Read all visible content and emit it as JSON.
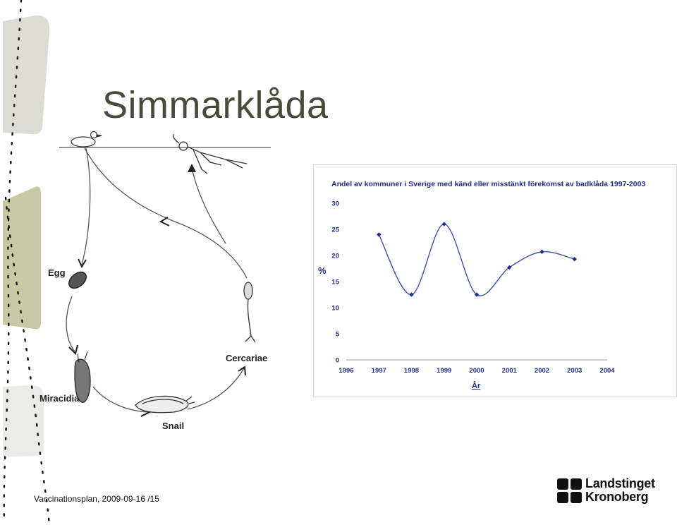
{
  "slide": {
    "title": "Simmarklåda",
    "footer": "Vaccinationsplan, 2009-09-16 /15"
  },
  "diagram": {
    "labels": {
      "egg": "Egg",
      "miracidia": "Miracidia",
      "snail": "Snail",
      "cercariae": "Cercariae"
    }
  },
  "logo": {
    "line1": "Landstinget",
    "line2": "Kronoberg"
  },
  "colors": {
    "title": "#4a4a3a",
    "series": "#3a4fb0",
    "marker": "#1f2e8c",
    "chart_title": "#1f2e8c",
    "side_panel": "#c9c8a5"
  },
  "chart_data": {
    "type": "line",
    "title": "Andel av kommuner i Sverige med känd eller misstänkt förekomst av badklåda 1997-2003",
    "xlabel": "År",
    "ylabel": "%",
    "x_ticks": [
      "1996",
      "1997",
      "1998",
      "1999",
      "2000",
      "2001",
      "2002",
      "2003",
      "2004"
    ],
    "y_ticks": [
      "0",
      "5",
      "10",
      "15",
      "20",
      "25",
      "30"
    ],
    "xlim": [
      1996,
      2004
    ],
    "ylim": [
      0,
      30
    ],
    "x": [
      1997,
      1998,
      1999,
      2000,
      2001,
      2002,
      2003
    ],
    "values": [
      24,
      12.5,
      26,
      12.5,
      17.7,
      20.7,
      19.3
    ],
    "grid": false,
    "smooth": true
  }
}
